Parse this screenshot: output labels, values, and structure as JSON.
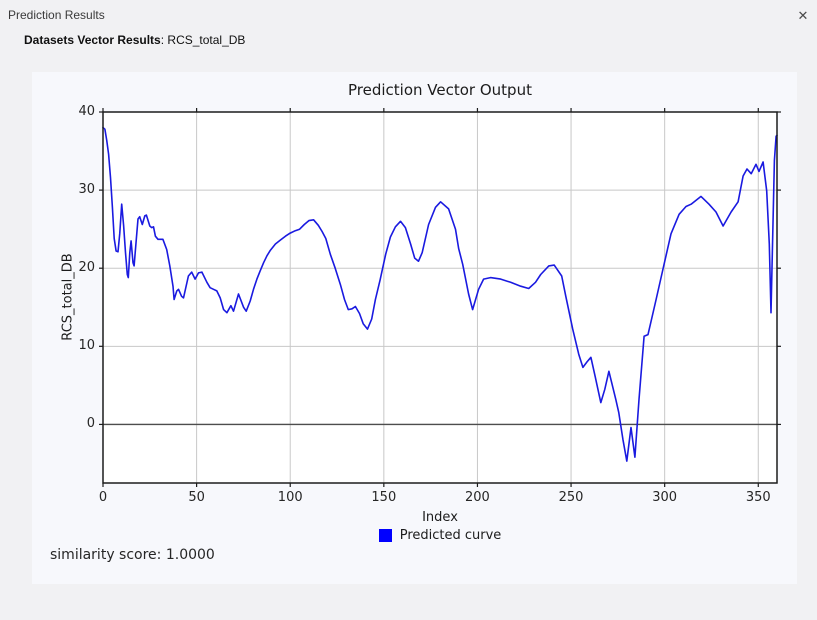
{
  "window": {
    "title": "Prediction Results",
    "close_glyph": "✕"
  },
  "header": {
    "dataset_label": "Datasets Vector Results",
    "dataset_value": ": RCS_total_DB"
  },
  "figure": {
    "similarity_text": "similarity score: 1.0000",
    "legend_color": "#0000ff"
  },
  "colors": {
    "window_bg": "#f1f1f3",
    "figure_bg": "#f7f8fc",
    "plot_bg": "#ffffff",
    "spine": "#1c1c1c",
    "grid": "#c8c8c8",
    "zero_line": "#4d4d4d",
    "curve": "#1a1ae0",
    "legend_swatch": "#0000ff"
  },
  "chart_data": {
    "type": "line",
    "title": "Prediction Vector Output",
    "xlabel": "Index",
    "ylabel": "RCS_total_DB",
    "xlim": [
      0,
      360
    ],
    "ylim": [
      -7.5,
      40
    ],
    "xticks": [
      0,
      50,
      100,
      150,
      200,
      250,
      300,
      350
    ],
    "yticks": [
      0,
      10,
      20,
      30,
      40
    ],
    "grid": true,
    "zero_line_y": 0,
    "legend_position": "bottom-center",
    "series": [
      {
        "name": "Predicted curve",
        "color": "#1a1ae0",
        "points": [
          [
            0,
            38.0
          ],
          [
            1,
            37.8
          ],
          [
            2,
            36.4
          ],
          [
            3,
            34.6
          ],
          [
            4,
            31.6
          ],
          [
            5,
            27.8
          ],
          [
            6,
            23.8
          ],
          [
            7,
            22.2
          ],
          [
            8,
            22.1
          ],
          [
            9,
            24.5
          ],
          [
            10,
            28.2
          ],
          [
            11,
            25.5
          ],
          [
            12,
            22.0
          ],
          [
            13,
            19.2
          ],
          [
            13.5,
            18.8
          ],
          [
            14.3,
            22.0
          ],
          [
            15,
            23.5
          ],
          [
            16,
            20.7
          ],
          [
            16.6,
            20.3
          ],
          [
            17.8,
            23.7
          ],
          [
            18.7,
            26.3
          ],
          [
            19.6,
            26.6
          ],
          [
            21,
            25.6
          ],
          [
            22.3,
            26.7
          ],
          [
            23.2,
            26.8
          ],
          [
            25,
            25.4
          ],
          [
            26,
            25.2
          ],
          [
            27,
            25.3
          ],
          [
            28,
            24.1
          ],
          [
            29.4,
            23.7
          ],
          [
            32,
            23.7
          ],
          [
            34,
            22.4
          ],
          [
            35.7,
            20.3
          ],
          [
            37.4,
            17.7
          ],
          [
            38,
            16.0
          ],
          [
            39.4,
            17.1
          ],
          [
            40.3,
            17.3
          ],
          [
            42,
            16.4
          ],
          [
            43,
            16.2
          ],
          [
            45.6,
            19.0
          ],
          [
            47.4,
            19.5
          ],
          [
            49.2,
            18.6
          ],
          [
            51,
            19.4
          ],
          [
            52.8,
            19.5
          ],
          [
            55.5,
            18.2
          ],
          [
            57.2,
            17.5
          ],
          [
            59,
            17.3
          ],
          [
            60.8,
            17.1
          ],
          [
            62.6,
            16.2
          ],
          [
            64.4,
            14.7
          ],
          [
            66.2,
            14.3
          ],
          [
            68.3,
            15.2
          ],
          [
            69.7,
            14.5
          ],
          [
            72.4,
            16.7
          ],
          [
            75.1,
            15.0
          ],
          [
            76.5,
            14.5
          ],
          [
            78.6,
            15.8
          ],
          [
            80.4,
            17.3
          ],
          [
            82.2,
            18.6
          ],
          [
            84,
            19.7
          ],
          [
            85.8,
            20.7
          ],
          [
            87.6,
            21.6
          ],
          [
            89.4,
            22.3
          ],
          [
            92.1,
            23.1
          ],
          [
            94.7,
            23.6
          ],
          [
            97.4,
            24.1
          ],
          [
            100,
            24.5
          ],
          [
            102.7,
            24.8
          ],
          [
            105,
            25.0
          ],
          [
            107.5,
            25.6
          ],
          [
            110,
            26.1
          ],
          [
            112.5,
            26.2
          ],
          [
            115,
            25.5
          ],
          [
            117,
            24.7
          ],
          [
            119,
            23.8
          ],
          [
            121.4,
            21.8
          ],
          [
            124,
            20.0
          ],
          [
            126.8,
            17.9
          ],
          [
            129,
            16.0
          ],
          [
            131,
            14.7
          ],
          [
            133,
            14.8
          ],
          [
            134.8,
            15.1
          ],
          [
            137,
            14.2
          ],
          [
            139,
            12.9
          ],
          [
            141.3,
            12.2
          ],
          [
            143.5,
            13.5
          ],
          [
            145.5,
            16.0
          ],
          [
            148,
            18.5
          ],
          [
            151,
            21.8
          ],
          [
            153.5,
            24.0
          ],
          [
            156.2,
            25.3
          ],
          [
            158.9,
            26.0
          ],
          [
            161.5,
            25.2
          ],
          [
            164.3,
            23.1
          ],
          [
            166.5,
            21.3
          ],
          [
            168.5,
            20.9
          ],
          [
            170.5,
            22.0
          ],
          [
            173.9,
            25.6
          ],
          [
            177.6,
            27.8
          ],
          [
            180.3,
            28.5
          ],
          [
            184.6,
            27.6
          ],
          [
            188.3,
            25.0
          ],
          [
            190,
            22.5
          ],
          [
            192.1,
            20.5
          ],
          [
            195.3,
            16.7
          ],
          [
            197.4,
            14.7
          ],
          [
            200.6,
            17.3
          ],
          [
            203.3,
            18.6
          ],
          [
            207,
            18.8
          ],
          [
            212.4,
            18.6
          ],
          [
            217.7,
            18.2
          ],
          [
            223.1,
            17.7
          ],
          [
            227.4,
            17.4
          ],
          [
            231,
            18.2
          ],
          [
            233.8,
            19.2
          ],
          [
            238.1,
            20.3
          ],
          [
            241,
            20.4
          ],
          [
            245,
            19.0
          ],
          [
            247.2,
            16.4
          ],
          [
            250.9,
            12.2
          ],
          [
            254.1,
            9.0
          ],
          [
            256.3,
            7.3
          ],
          [
            258.5,
            8.0
          ],
          [
            260.6,
            8.6
          ],
          [
            263,
            6.0
          ],
          [
            265.9,
            2.8
          ],
          [
            268,
            4.5
          ],
          [
            270.2,
            6.8
          ],
          [
            273.9,
            3.2
          ],
          [
            275.5,
            1.5
          ],
          [
            277.7,
            -1.9
          ],
          [
            279.8,
            -4.7
          ],
          [
            282,
            -0.4
          ],
          [
            284.1,
            -4.2
          ],
          [
            286.3,
            3.2
          ],
          [
            289,
            11.3
          ],
          [
            291.1,
            11.5
          ],
          [
            293,
            13.5
          ],
          [
            295.4,
            16.0
          ],
          [
            299.1,
            19.9
          ],
          [
            303.4,
            24.4
          ],
          [
            307.7,
            26.9
          ],
          [
            311.4,
            27.9
          ],
          [
            314.1,
            28.2
          ],
          [
            319.4,
            29.2
          ],
          [
            323.7,
            28.2
          ],
          [
            327.4,
            27.2
          ],
          [
            331.2,
            25.4
          ],
          [
            335.5,
            27.2
          ],
          [
            339.2,
            28.5
          ],
          [
            341.9,
            31.8
          ],
          [
            344,
            32.7
          ],
          [
            346.2,
            32.1
          ],
          [
            348.8,
            33.3
          ],
          [
            350.4,
            32.4
          ],
          [
            352.6,
            33.6
          ],
          [
            354.5,
            29.9
          ],
          [
            355.9,
            23.1
          ],
          [
            356.8,
            14.3
          ],
          [
            358.6,
            33.8
          ],
          [
            359.5,
            36.9
          ],
          [
            360,
            37.0
          ]
        ]
      }
    ]
  }
}
